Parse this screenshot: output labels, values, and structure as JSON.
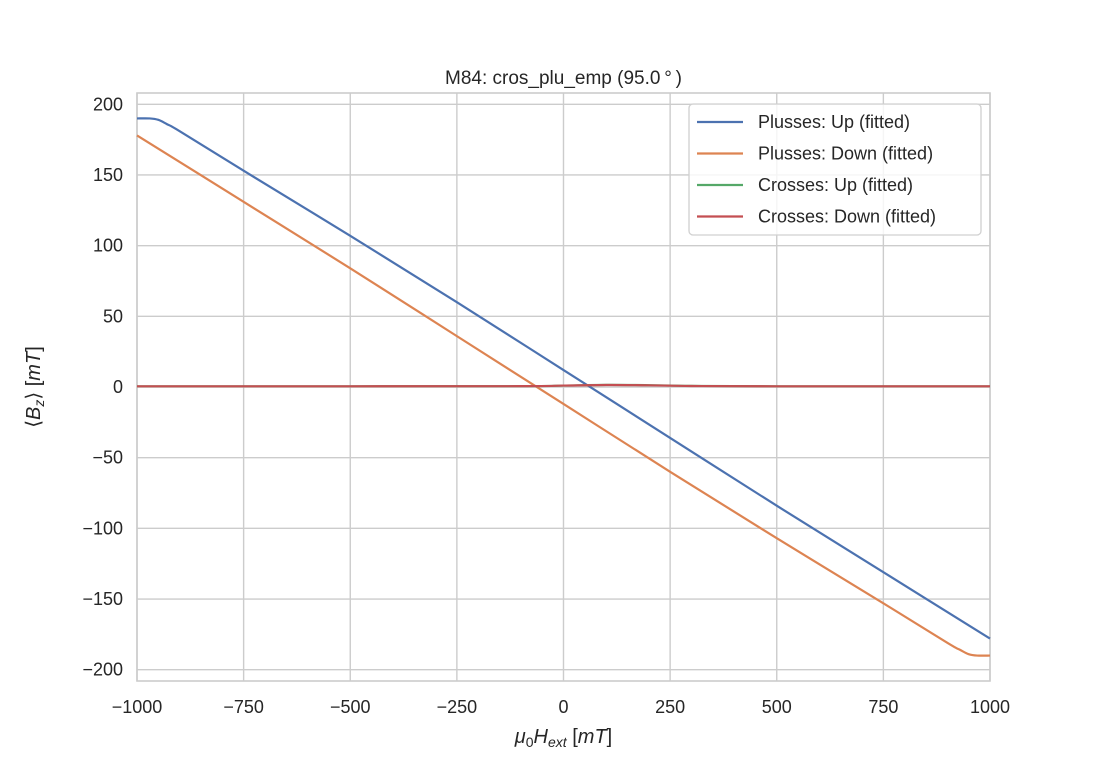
{
  "chart_data": {
    "type": "line",
    "title": "M84: cros_plu_emp (95.0 ° )",
    "xlabel": "μ0Hext [mT]",
    "ylabel": "⟨Bz⟩ [mT]",
    "xlim": [
      -1000,
      1000
    ],
    "ylim": [
      -208,
      208
    ],
    "xticks": [
      -1000,
      -750,
      -500,
      -250,
      0,
      250,
      500,
      750,
      1000
    ],
    "xtick_labels": [
      "−1000",
      "−750",
      "−500",
      "−250",
      "0",
      "250",
      "500",
      "750",
      "1000"
    ],
    "yticks": [
      -200,
      -150,
      -100,
      -50,
      0,
      50,
      100,
      150,
      200
    ],
    "ytick_labels": [
      "−200",
      "−150",
      "−100",
      "−50",
      "0",
      "50",
      "100",
      "150",
      "200"
    ],
    "grid": true,
    "legend_position": "top-right",
    "series": [
      {
        "name": "Plusses: Up (fitted)",
        "color": "#4c72b0",
        "x": [
          -1000,
          -970,
          -950,
          -930,
          -900,
          -750,
          -500,
          -250,
          0,
          250,
          500,
          750,
          1000
        ],
        "y": [
          190,
          190,
          189,
          186,
          181,
          153,
          107,
          60,
          12,
          -36,
          -84,
          -131,
          -178
        ]
      },
      {
        "name": "Plusses: Down (fitted)",
        "color": "#dd8452",
        "x": [
          -1000,
          -750,
          -500,
          -250,
          0,
          250,
          500,
          750,
          900,
          930,
          950,
          970,
          1000
        ],
        "y": [
          178,
          131,
          84,
          36,
          -12,
          -60,
          -107,
          -153,
          -181,
          -186,
          -189,
          -190,
          -190
        ]
      },
      {
        "name": "Crosses: Up (fitted)",
        "color": "#55a868",
        "x": [
          -1000,
          -500,
          -100,
          0,
          100,
          200,
          300,
          500,
          1000
        ],
        "y": [
          0.5,
          0.5,
          0.6,
          1.0,
          1.5,
          1.3,
          0.8,
          0.5,
          0.5
        ]
      },
      {
        "name": "Crosses: Down (fitted)",
        "color": "#c44e52",
        "x": [
          -1000,
          -500,
          -100,
          0,
          100,
          200,
          300,
          500,
          1000
        ],
        "y": [
          0.5,
          0.5,
          0.6,
          1.0,
          1.4,
          1.2,
          0.7,
          0.5,
          0.5
        ]
      }
    ]
  }
}
